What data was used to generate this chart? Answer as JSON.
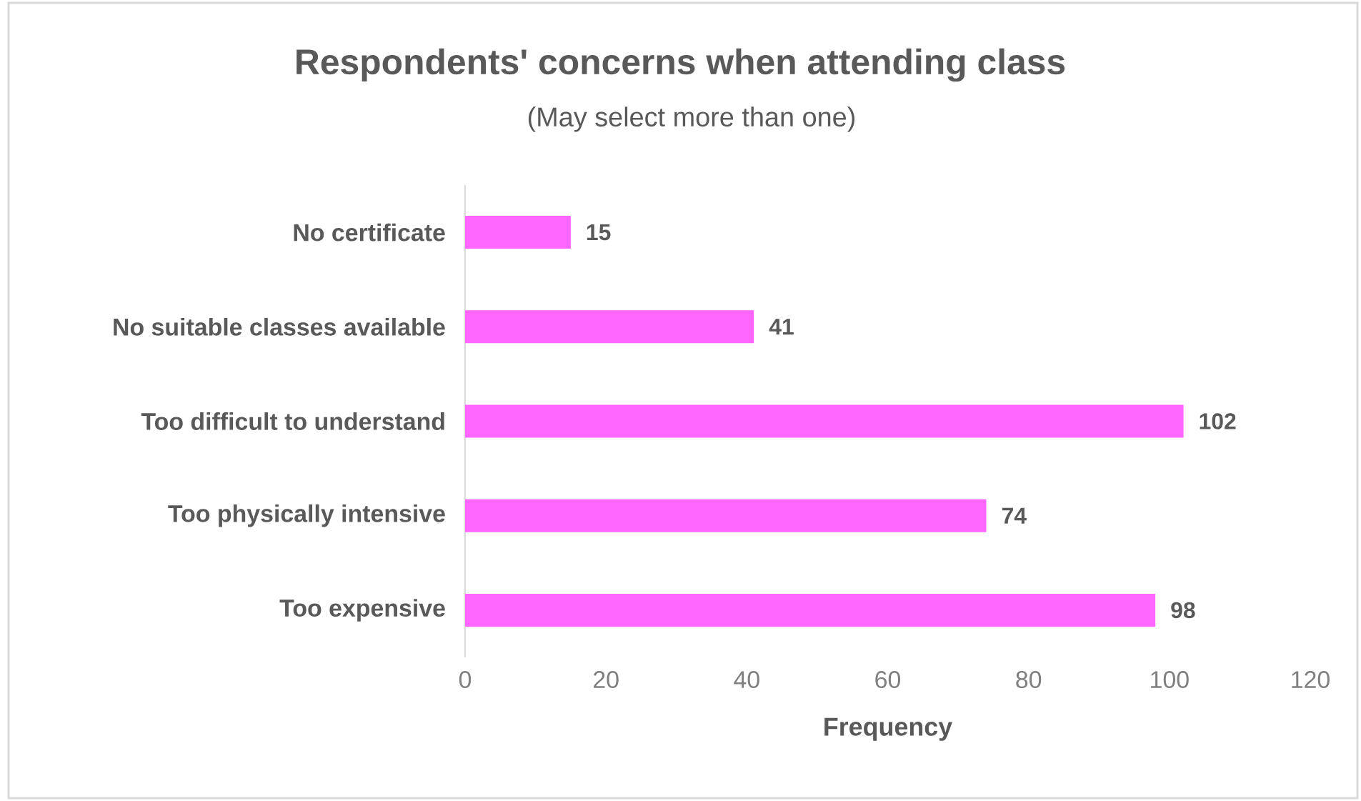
{
  "chart_data": {
    "type": "bar",
    "orientation": "horizontal",
    "title": "Respondents' concerns when attending class",
    "subtitle": "(May select more than one)",
    "xlabel": "Frequency",
    "categories": [
      "No certificate",
      "No suitable classes available",
      "Too difficult to understand",
      "Too physically intensive",
      "Too expensive"
    ],
    "values": [
      15,
      41,
      102,
      74,
      98
    ],
    "color": "#ff66ff",
    "xlim": [
      0,
      120
    ],
    "xticks": [
      0,
      20,
      40,
      60,
      80,
      100,
      120
    ],
    "data_labels": true
  }
}
